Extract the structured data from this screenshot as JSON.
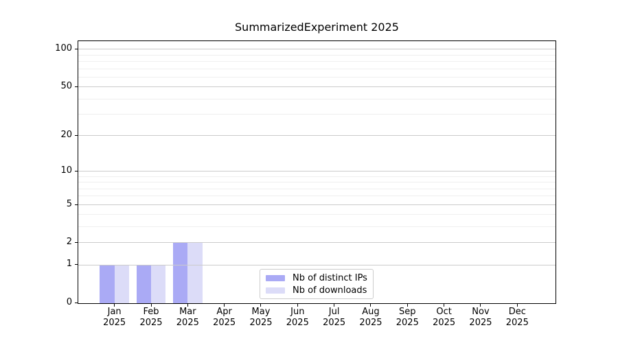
{
  "chart_data": {
    "type": "bar",
    "title": "SummarizedExperiment 2025",
    "categories": [
      "Jan",
      "Feb",
      "Mar",
      "Apr",
      "May",
      "Jun",
      "Jul",
      "Aug",
      "Sep",
      "Oct",
      "Nov",
      "Dec"
    ],
    "x_year_label": "2025",
    "series": [
      {
        "name": "Nb of distinct IPs",
        "color": "#aaaaf5",
        "values": [
          1,
          1,
          2,
          0,
          0,
          0,
          0,
          0,
          0,
          0,
          0,
          0
        ]
      },
      {
        "name": "Nb of downloads",
        "color": "#dcdcf8",
        "values": [
          1,
          1,
          2,
          0,
          0,
          0,
          0,
          0,
          0,
          0,
          0,
          0
        ]
      }
    ],
    "yscale": "log1p",
    "ylim": [
      0,
      117
    ],
    "y_tick_values": [
      0,
      1,
      2,
      5,
      10,
      20,
      50,
      100
    ],
    "y_tick_labels": [
      "0",
      "1",
      "2",
      "5",
      "10",
      "20",
      "50",
      "100"
    ],
    "y_major_gridlines": [
      1,
      2,
      5,
      10,
      20,
      50,
      100
    ],
    "y_minor_gridlines": [
      3,
      4,
      6,
      7,
      8,
      9,
      30,
      40,
      60,
      70,
      80,
      90
    ],
    "grid": "horizontal",
    "legend_position": "lower-center",
    "colors": {
      "spine": "#000000",
      "major_grid": "#cbcbcb",
      "minor_grid": "#efefef",
      "legend_border": "#cccccc",
      "background": "#ffffff"
    }
  }
}
